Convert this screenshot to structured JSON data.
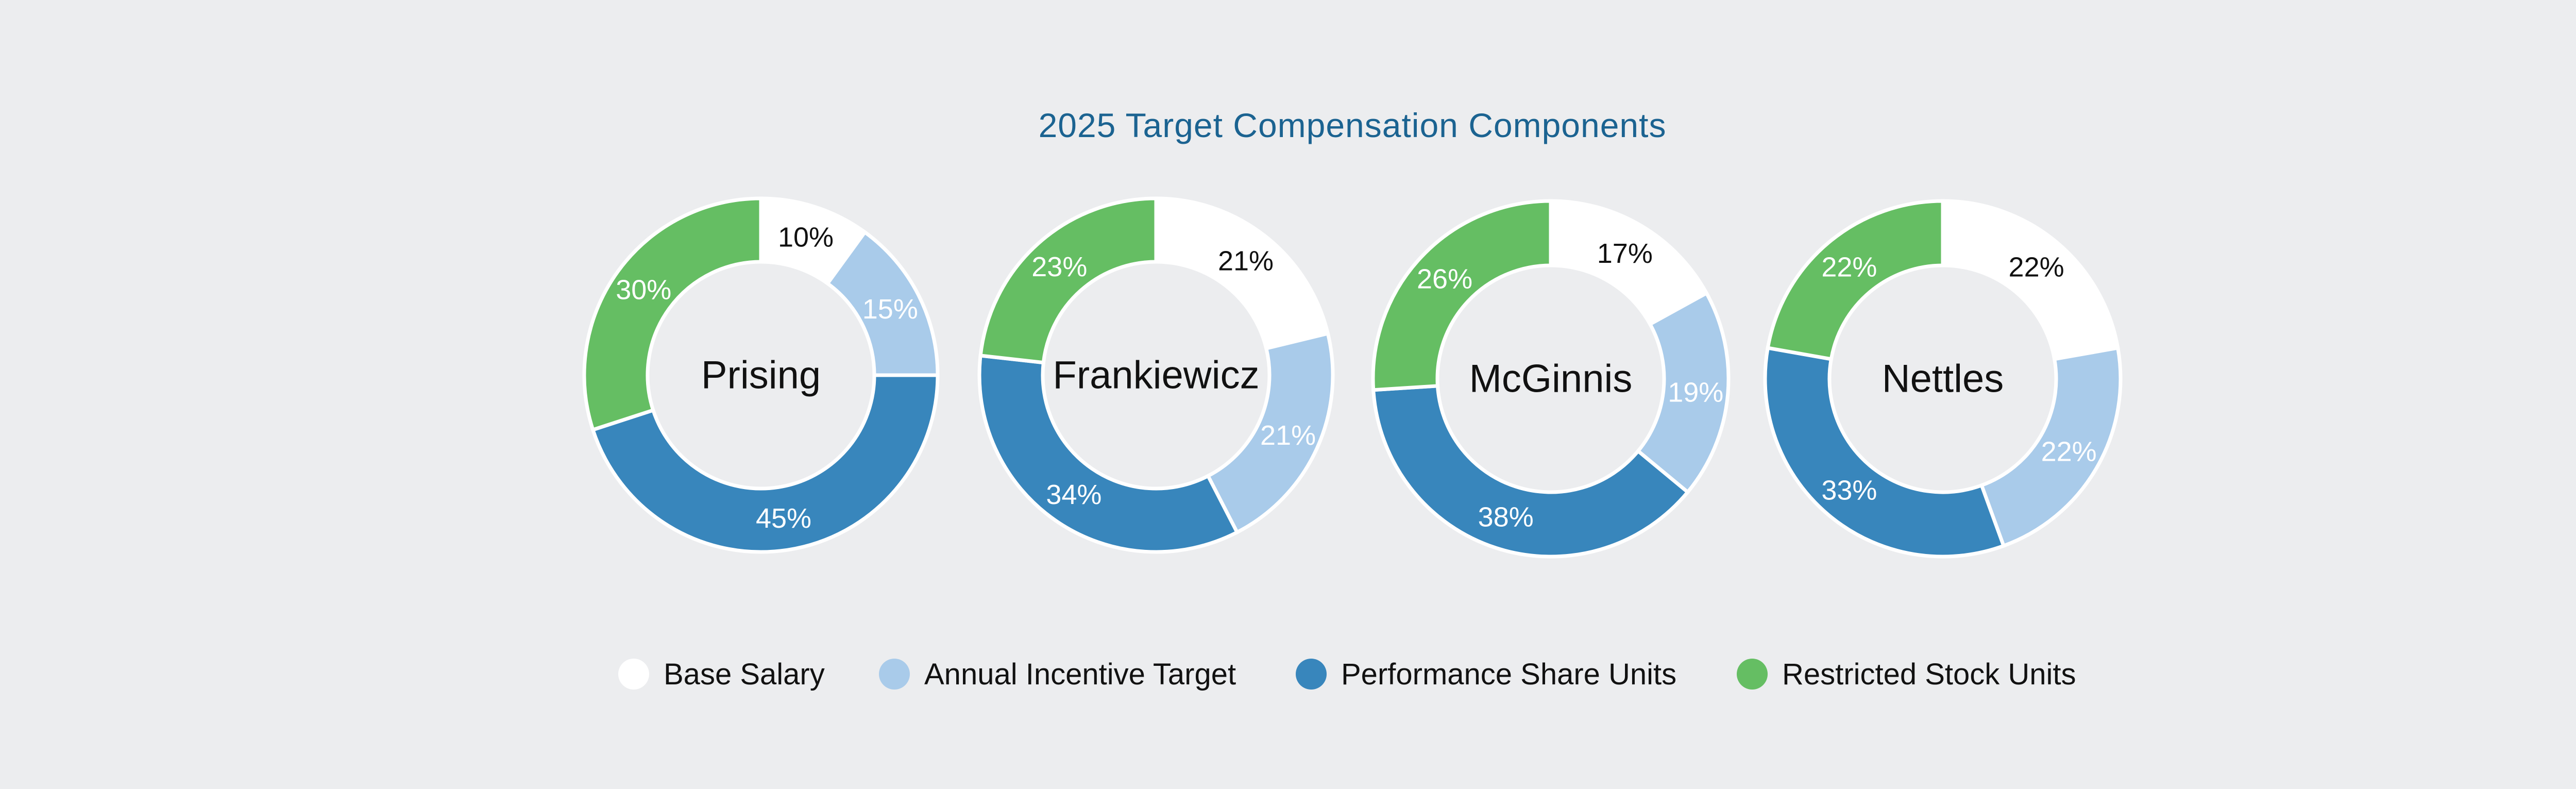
{
  "chart_data": {
    "type": "pie",
    "style": "donut",
    "title": "2025 Target Compensation Components",
    "categories": [
      "Base Salary",
      "Annual Incentive Target",
      "Performance Share Units",
      "Restricted Stock Units"
    ],
    "colors": [
      "#ffffff",
      "#a9cbea",
      "#3886bc",
      "#65be63"
    ],
    "label_colors": [
      "#111111",
      "#ffffff",
      "#ffffff",
      "#ffffff"
    ],
    "legend_position": "bottom",
    "series": [
      {
        "name": "Prising",
        "values": [
          10,
          15,
          45,
          30
        ],
        "labels": [
          "10%",
          "15%",
          "45%",
          "30%"
        ]
      },
      {
        "name": "Frankiewicz",
        "values": [
          21,
          21,
          34,
          23
        ],
        "labels": [
          "21%",
          "21%",
          "34%",
          "23%"
        ]
      },
      {
        "name": "McGinnis",
        "values": [
          17,
          19,
          38,
          26
        ],
        "labels": [
          "17%",
          "19%",
          "38%",
          "26%"
        ]
      },
      {
        "name": "Nettles",
        "values": [
          22,
          22,
          33,
          22
        ],
        "labels": [
          "22%",
          "22%",
          "33%",
          "22%"
        ]
      }
    ]
  }
}
